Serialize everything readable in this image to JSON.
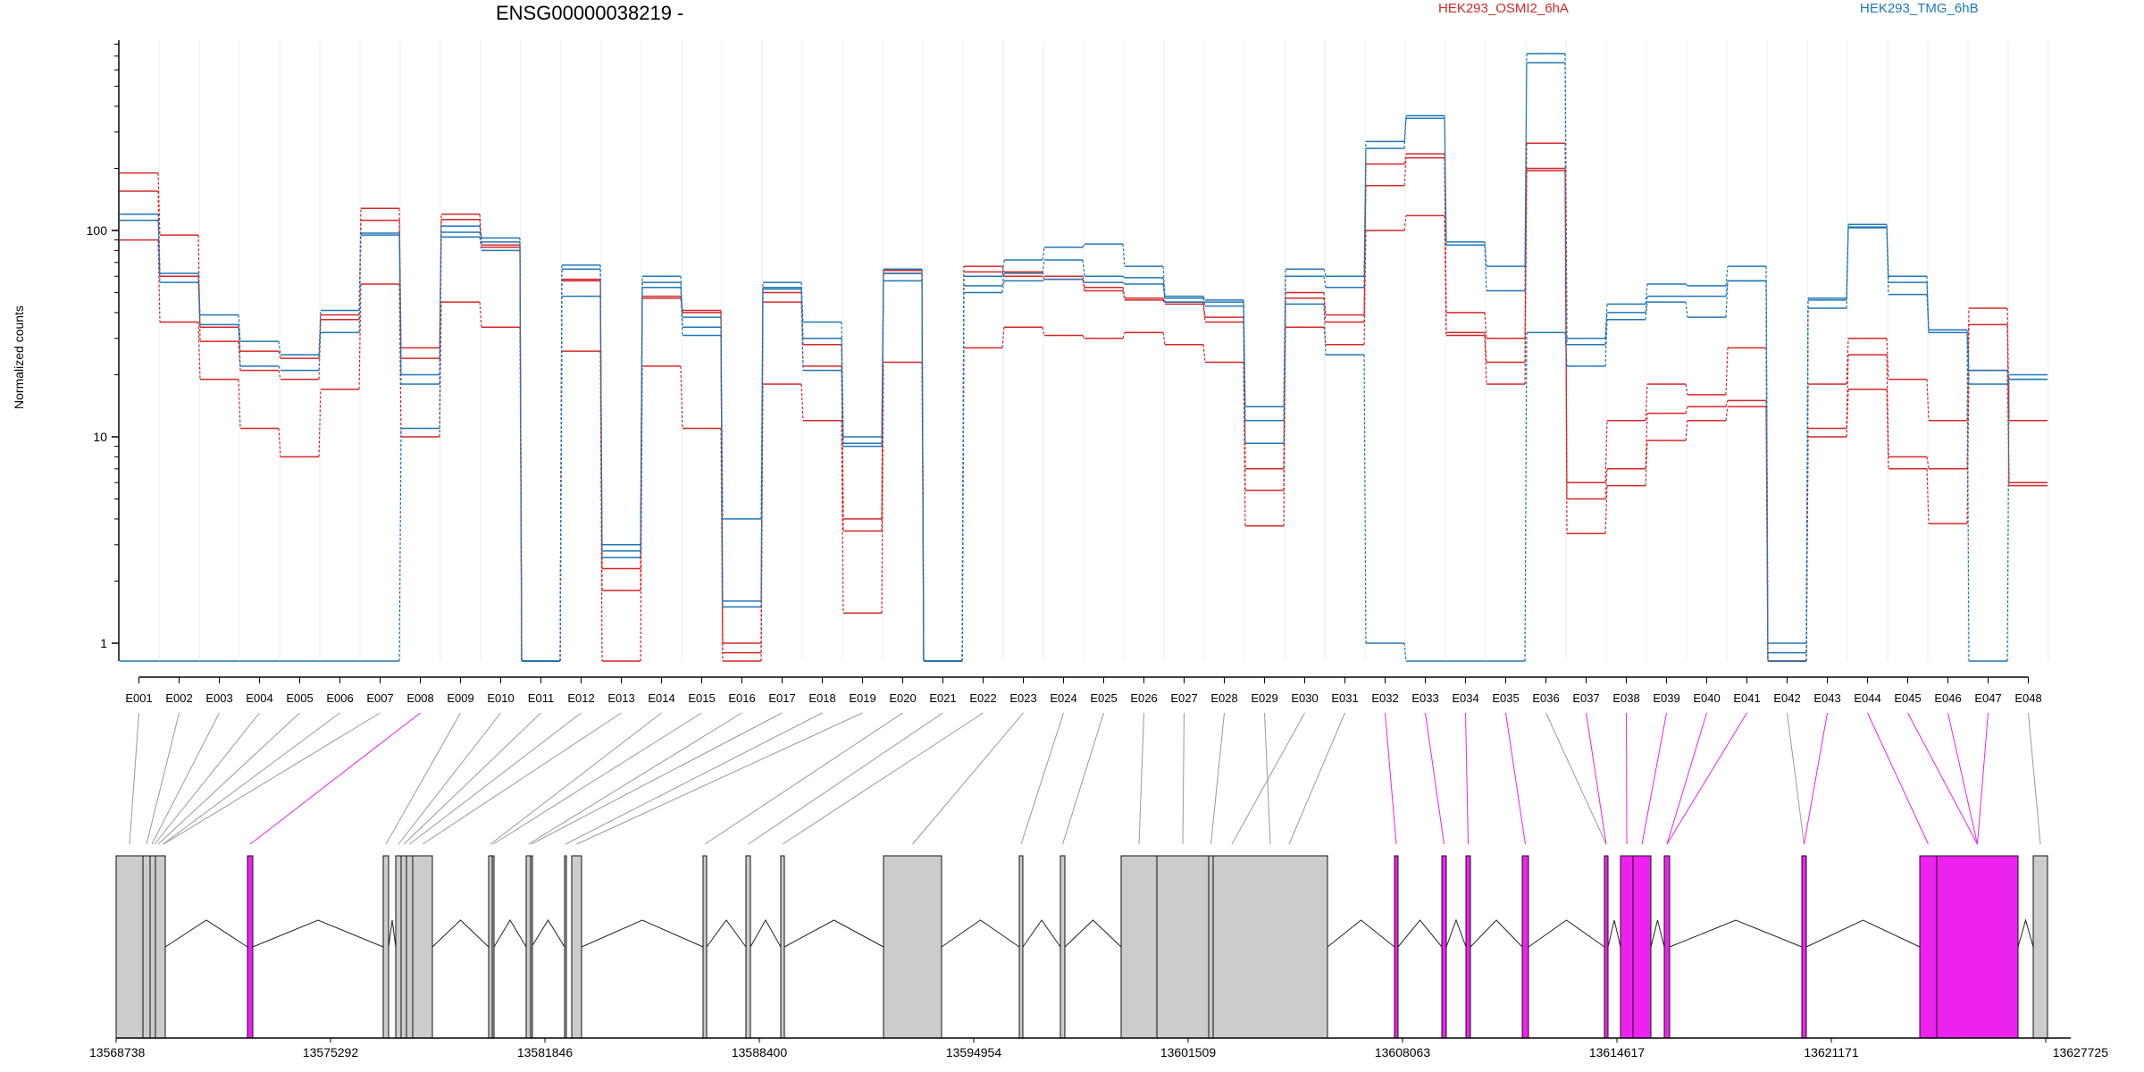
{
  "chart_data": {
    "type": "line",
    "title": "ENSG00000038219 -",
    "ylabel": "Normalized counts",
    "y_scale": "log",
    "yticks": [
      "1",
      "10",
      "100"
    ],
    "ytick_values": [
      1,
      10,
      100
    ],
    "legend": [
      {
        "name": "HEK293_OSMI2_6hA",
        "color": "#d62728"
      },
      {
        "name": "HEK293_TMG_6hB",
        "color": "#1f77b4"
      }
    ],
    "legend_placement": "top",
    "categories": [
      "E001",
      "E002",
      "E003",
      "E004",
      "E005",
      "E006",
      "E007",
      "E008",
      "E009",
      "E010",
      "E011",
      "E012",
      "E013",
      "E014",
      "E015",
      "E016",
      "E017",
      "E018",
      "E019",
      "E020",
      "E021",
      "E022",
      "E023",
      "E024",
      "E025",
      "E026",
      "E027",
      "E028",
      "E029",
      "E030",
      "E031",
      "E032",
      "E033",
      "E034",
      "E035",
      "E036",
      "E037",
      "E038",
      "E039",
      "E040",
      "E041",
      "E042",
      "E043",
      "E044",
      "E045",
      "E046",
      "E047",
      "E048"
    ],
    "series": [
      {
        "group": "HEK293_OSMI2_6hA",
        "color": "#d62728",
        "values": [
          190,
          95,
          29,
          21,
          19,
          39,
          128,
          27,
          120,
          85,
          0.5,
          57,
          2.3,
          47,
          41,
          1.0,
          50,
          28,
          4.0,
          64,
          0.5,
          67,
          63,
          60,
          53,
          47,
          45,
          38,
          7.0,
          50,
          39,
          210,
          235,
          40,
          30,
          265,
          6.0,
          12,
          18,
          16,
          27,
          0.5,
          18,
          30,
          19,
          12,
          42,
          12
        ]
      },
      {
        "group": "HEK293_OSMI2_6hA",
        "color": "#d62728",
        "values": [
          155,
          60,
          34,
          26,
          24,
          37,
          112,
          24,
          113,
          83,
          0.5,
          58,
          1.8,
          48,
          40,
          0.9,
          45,
          22,
          3.5,
          62,
          0.5,
          63,
          60,
          58,
          51,
          46,
          44,
          36,
          5.5,
          47,
          36,
          165,
          225,
          32,
          23,
          200,
          5.0,
          7.0,
          13,
          14,
          15,
          0.5,
          11,
          25,
          8,
          7,
          35,
          6
        ]
      },
      {
        "group": "HEK293_OSMI2_6hA",
        "color": "#d62728",
        "values": [
          90,
          36,
          19,
          11,
          8,
          17,
          55,
          10,
          45,
          34,
          0.5,
          26,
          0.5,
          22,
          11,
          0.5,
          18,
          12,
          1.4,
          23,
          0.5,
          27,
          34,
          31,
          30,
          32,
          28,
          23,
          3.7,
          34,
          28,
          100,
          118,
          31,
          18,
          195,
          3.4,
          5.8,
          9.6,
          12,
          14,
          0.5,
          10,
          17,
          7,
          3.8,
          21,
          5.8
        ]
      },
      {
        "group": "HEK293_TMG_6hB",
        "color": "#1f77b4",
        "values": [
          120,
          62,
          39,
          29,
          25,
          41,
          97,
          20,
          105,
          92,
          0.5,
          68,
          3.0,
          60,
          38,
          4.0,
          56,
          36,
          10,
          65,
          0.5,
          60,
          72,
          83,
          86,
          67,
          48,
          46,
          14,
          65,
          60,
          270,
          360,
          88,
          67,
          720,
          30,
          44,
          55,
          54,
          67,
          1.0,
          47,
          107,
          60,
          33,
          21,
          19
        ]
      },
      {
        "group": "HEK293_TMG_6hB",
        "color": "#1f77b4",
        "values": [
          112,
          56,
          35,
          22,
          21,
          32,
          95,
          18,
          98,
          88,
          0.5,
          65,
          2.6,
          56,
          34,
          1.6,
          53,
          30,
          9.0,
          62,
          0.5,
          54,
          62,
          72,
          60,
          59,
          45,
          45,
          12,
          60,
          53,
          250,
          350,
          85,
          51,
          650,
          28,
          40,
          48,
          48,
          57,
          0.9,
          42,
          103,
          56,
          32,
          18,
          19
        ]
      },
      {
        "group": "HEK293_TMG_6hB",
        "color": "#1f77b4",
        "values": [
          0.5,
          0.5,
          0.5,
          0.5,
          0.5,
          0.5,
          0.5,
          11,
          93,
          80,
          0.5,
          48,
          2.8,
          53,
          31,
          1.5,
          52,
          21,
          9.3,
          57,
          0.5,
          50,
          57,
          58,
          56,
          55,
          47,
          43,
          9.3,
          44,
          25,
          1.0,
          0.5,
          0.5,
          0.5,
          32,
          22,
          37,
          45,
          38,
          57,
          0.5,
          46,
          104,
          49,
          32,
          0.5,
          20
        ]
      }
    ],
    "gene_track": {
      "coordinates": [
        "13568738",
        "13575292",
        "13581846",
        "13588400",
        "13594954",
        "13601509",
        "13608063",
        "13614617",
        "13621171",
        "13627725"
      ],
      "exon_colors": {
        "normal": "#cccccc",
        "highlighted": "#ee22ee"
      },
      "highlighted_exons": [
        "E008",
        "E032",
        "E033",
        "E034",
        "E035",
        "E037",
        "E038",
        "E039",
        "E040",
        "E041",
        "E043",
        "E044",
        "E045",
        "E046",
        "E047"
      ]
    }
  }
}
